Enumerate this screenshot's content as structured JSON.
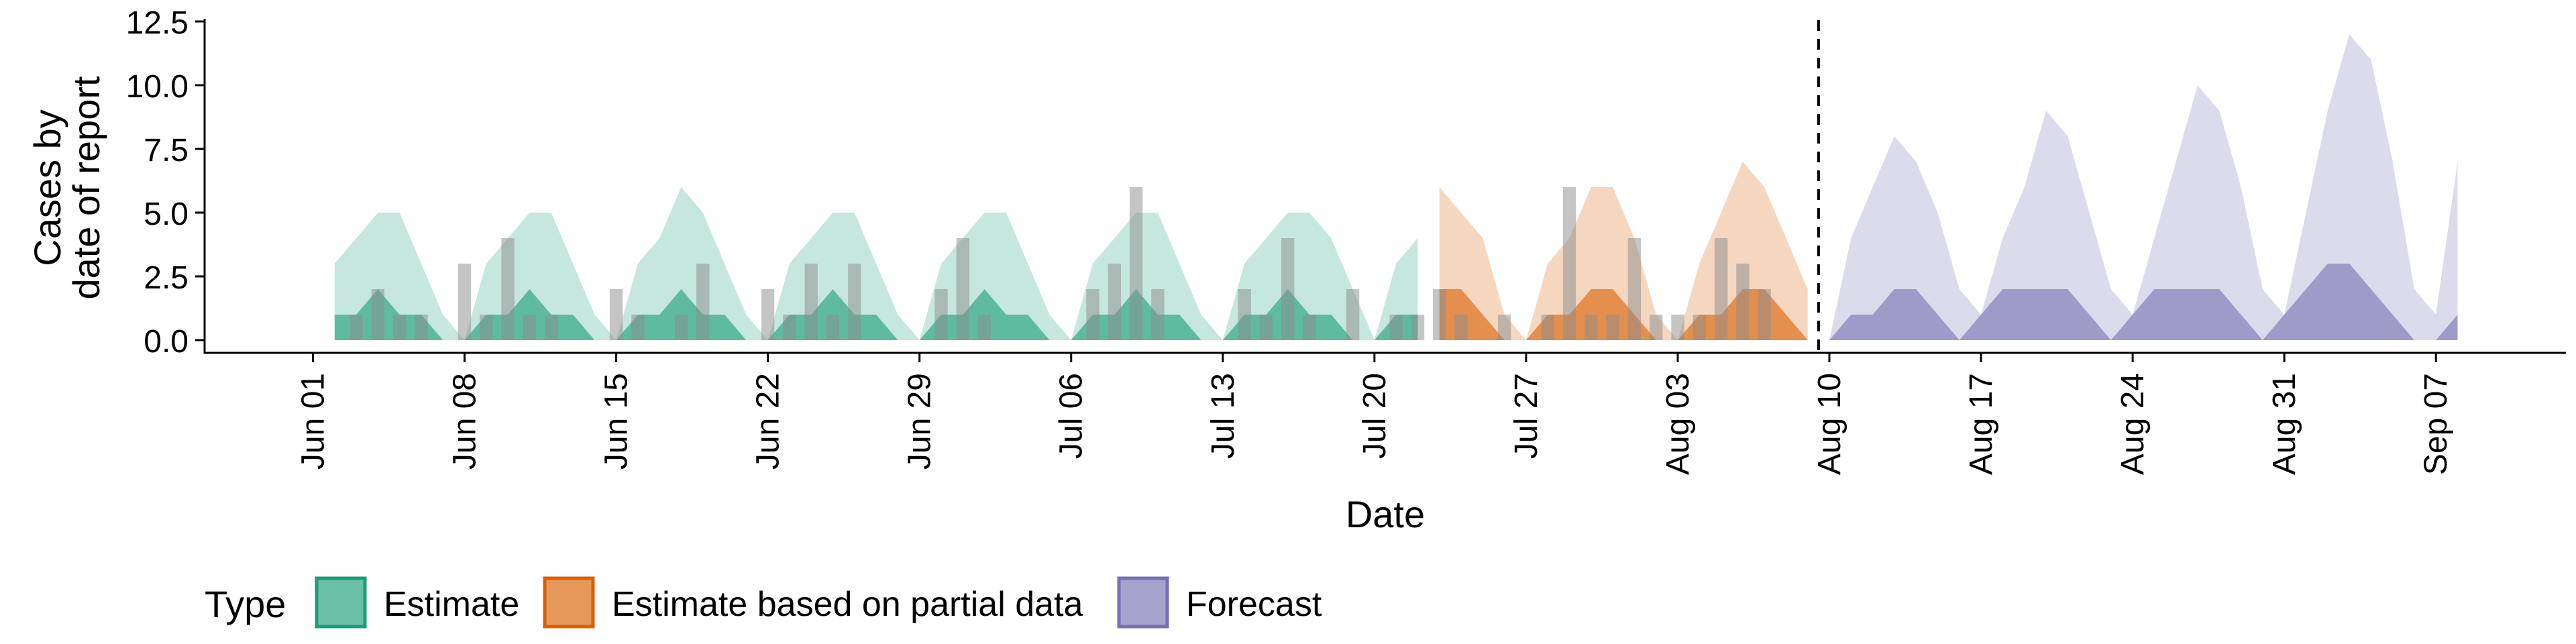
{
  "chart_data": {
    "type": "area",
    "xlabel": "Date",
    "ylabel_lines": [
      "Cases by",
      "date of report"
    ],
    "ylim": [
      -0.5,
      12.5
    ],
    "y_ticks": [
      0.0,
      2.5,
      5.0,
      7.5,
      10.0,
      12.5
    ],
    "y_tick_labels": [
      "0.0",
      "2.5",
      "5.0",
      "7.5",
      "10.0",
      "12.5"
    ],
    "x_ticks": [
      "2020-06-01",
      "2020-06-08",
      "2020-06-15",
      "2020-06-22",
      "2020-06-29",
      "2020-07-06",
      "2020-07-13",
      "2020-07-20",
      "2020-07-27",
      "2020-08-03",
      "2020-08-10",
      "2020-08-17",
      "2020-08-24",
      "2020-08-31",
      "2020-09-07"
    ],
    "x_tick_labels": [
      "Jun 01",
      "Jun 08",
      "Jun 15",
      "Jun 22",
      "Jun 29",
      "Jul 06",
      "Jul 13",
      "Jul 20",
      "Jul 27",
      "Aug 03",
      "Aug 10",
      "Aug 17",
      "Aug 24",
      "Aug 31",
      "Sep 07"
    ],
    "x_range": [
      "2020-05-27",
      "2020-09-13"
    ],
    "forecast_cutoff": "2020-08-09",
    "grid": false,
    "legend_position": "bottom",
    "legend_title": "Type",
    "legend_entries": [
      {
        "label": "Estimate",
        "color": "#1b9e77"
      },
      {
        "label": "Estimate based on partial data",
        "color": "#d95f02"
      },
      {
        "label": "Forecast",
        "color": "#7570b3"
      }
    ],
    "series": [
      {
        "name": "Estimate",
        "color": "#1b9e77",
        "x": [
          "2020-06-02",
          "2020-06-03",
          "2020-06-04",
          "2020-06-05",
          "2020-06-06",
          "2020-06-07",
          "2020-06-08",
          "2020-06-09",
          "2020-06-10",
          "2020-06-11",
          "2020-06-12",
          "2020-06-13",
          "2020-06-14",
          "2020-06-15",
          "2020-06-16",
          "2020-06-17",
          "2020-06-18",
          "2020-06-19",
          "2020-06-20",
          "2020-06-21",
          "2020-06-22",
          "2020-06-23",
          "2020-06-24",
          "2020-06-25",
          "2020-06-26",
          "2020-06-27",
          "2020-06-28",
          "2020-06-29",
          "2020-06-30",
          "2020-07-01",
          "2020-07-02",
          "2020-07-03",
          "2020-07-04",
          "2020-07-05",
          "2020-07-06",
          "2020-07-07",
          "2020-07-08",
          "2020-07-09",
          "2020-07-10",
          "2020-07-11",
          "2020-07-12",
          "2020-07-13",
          "2020-07-14",
          "2020-07-15",
          "2020-07-16",
          "2020-07-17",
          "2020-07-18",
          "2020-07-19",
          "2020-07-20",
          "2020-07-21",
          "2020-07-22"
        ],
        "outer_upper": [
          3,
          4,
          5,
          5,
          3,
          1,
          0,
          3,
          4,
          5,
          5,
          3,
          1,
          0,
          3,
          4,
          6,
          5,
          3,
          1,
          0,
          3,
          4,
          5,
          5,
          3,
          1,
          0,
          3,
          4,
          5,
          5,
          3,
          1,
          0,
          3,
          4,
          5,
          5,
          3,
          1,
          0,
          3,
          4,
          5,
          5,
          4,
          2,
          0,
          3,
          4
        ],
        "inner_lower": [
          0,
          0,
          0,
          0,
          0,
          0,
          0,
          0,
          0,
          0,
          0,
          0,
          0,
          0,
          0,
          0,
          0,
          0,
          0,
          0,
          0,
          0,
          0,
          0,
          0,
          0,
          0,
          0,
          0,
          0,
          0,
          0,
          0,
          0,
          0,
          0,
          0,
          0,
          0,
          0,
          0,
          0,
          0,
          0,
          0,
          0,
          0,
          0,
          0,
          0,
          0
        ],
        "inner_upper": [
          1,
          1,
          2,
          1,
          1,
          0,
          0,
          1,
          1,
          2,
          1,
          1,
          0,
          0,
          1,
          1,
          2,
          1,
          1,
          0,
          0,
          1,
          1,
          2,
          1,
          1,
          0,
          0,
          1,
          1,
          2,
          1,
          1,
          0,
          0,
          1,
          1,
          2,
          1,
          1,
          0,
          0,
          1,
          1,
          2,
          1,
          1,
          0,
          0,
          1,
          1
        ]
      },
      {
        "name": "Estimate based on partial data",
        "color": "#d95f02",
        "x": [
          "2020-07-23",
          "2020-07-24",
          "2020-07-25",
          "2020-07-26",
          "2020-07-27",
          "2020-07-28",
          "2020-07-29",
          "2020-07-30",
          "2020-07-31",
          "2020-08-01",
          "2020-08-02",
          "2020-08-03",
          "2020-08-04",
          "2020-08-05",
          "2020-08-06",
          "2020-08-07",
          "2020-08-08",
          "2020-08-09"
        ],
        "outer_upper": [
          6,
          5,
          4,
          1,
          0,
          3,
          4,
          6,
          6,
          4,
          1,
          0,
          3,
          5,
          7,
          6,
          4,
          2
        ],
        "inner_lower": [
          0,
          0,
          0,
          0,
          0,
          0,
          0,
          0,
          0,
          0,
          0,
          0,
          0,
          0,
          0,
          0,
          0,
          0
        ],
        "inner_upper": [
          2,
          2,
          1,
          0,
          0,
          1,
          1,
          2,
          2,
          1,
          0,
          0,
          1,
          1,
          2,
          2,
          1,
          0
        ]
      },
      {
        "name": "Forecast",
        "color": "#7570b3",
        "x": [
          "2020-08-10",
          "2020-08-11",
          "2020-08-12",
          "2020-08-13",
          "2020-08-14",
          "2020-08-15",
          "2020-08-16",
          "2020-08-17",
          "2020-08-18",
          "2020-08-19",
          "2020-08-20",
          "2020-08-21",
          "2020-08-22",
          "2020-08-23",
          "2020-08-24",
          "2020-08-25",
          "2020-08-26",
          "2020-08-27",
          "2020-08-28",
          "2020-08-29",
          "2020-08-30",
          "2020-08-31",
          "2020-09-01",
          "2020-09-02",
          "2020-09-03",
          "2020-09-04",
          "2020-09-05",
          "2020-09-06",
          "2020-09-07",
          "2020-09-08"
        ],
        "outer_upper": [
          0,
          4,
          6,
          8,
          7,
          5,
          2,
          1,
          4,
          6,
          9,
          8,
          5,
          2,
          1,
          4,
          7,
          10,
          9,
          6,
          2,
          1,
          5,
          9,
          12,
          11,
          7,
          2,
          1,
          7
        ],
        "inner_lower": [
          0,
          0,
          0,
          0,
          0,
          0,
          0,
          0,
          0,
          0,
          0,
          0,
          0,
          0,
          0,
          0,
          0,
          0,
          0,
          0,
          0,
          0,
          0,
          0,
          0,
          0,
          0,
          0,
          0,
          0
        ],
        "inner_upper": [
          0,
          1,
          1,
          2,
          2,
          1,
          0,
          1,
          2,
          2,
          2,
          2,
          1,
          0,
          1,
          2,
          2,
          2,
          2,
          1,
          0,
          1,
          2,
          3,
          3,
          2,
          1,
          0,
          0,
          1
        ]
      }
    ],
    "reported_cases": {
      "color": "#8c8c8c",
      "points": [
        [
          "2020-06-03",
          1
        ],
        [
          "2020-06-04",
          2
        ],
        [
          "2020-06-05",
          1
        ],
        [
          "2020-06-06",
          1
        ],
        [
          "2020-06-08",
          3
        ],
        [
          "2020-06-09",
          1
        ],
        [
          "2020-06-10",
          4
        ],
        [
          "2020-06-11",
          1
        ],
        [
          "2020-06-12",
          1
        ],
        [
          "2020-06-15",
          2
        ],
        [
          "2020-06-16",
          1
        ],
        [
          "2020-06-18",
          1
        ],
        [
          "2020-06-19",
          3
        ],
        [
          "2020-06-22",
          2
        ],
        [
          "2020-06-23",
          1
        ],
        [
          "2020-06-24",
          3
        ],
        [
          "2020-06-25",
          1
        ],
        [
          "2020-06-26",
          3
        ],
        [
          "2020-06-30",
          2
        ],
        [
          "2020-07-01",
          4
        ],
        [
          "2020-07-02",
          1
        ],
        [
          "2020-07-07",
          2
        ],
        [
          "2020-07-08",
          3
        ],
        [
          "2020-07-09",
          6
        ],
        [
          "2020-07-10",
          2
        ],
        [
          "2020-07-14",
          2
        ],
        [
          "2020-07-15",
          1
        ],
        [
          "2020-07-16",
          4
        ],
        [
          "2020-07-17",
          1
        ],
        [
          "2020-07-19",
          2
        ],
        [
          "2020-07-21",
          1
        ],
        [
          "2020-07-22",
          1
        ],
        [
          "2020-07-23",
          2
        ],
        [
          "2020-07-24",
          1
        ],
        [
          "2020-07-26",
          1
        ],
        [
          "2020-07-28",
          1
        ],
        [
          "2020-07-29",
          6
        ],
        [
          "2020-07-30",
          1
        ],
        [
          "2020-07-31",
          1
        ],
        [
          "2020-08-01",
          4
        ],
        [
          "2020-08-02",
          1
        ],
        [
          "2020-08-03",
          1
        ],
        [
          "2020-08-04",
          1
        ],
        [
          "2020-08-05",
          4
        ],
        [
          "2020-08-06",
          3
        ],
        [
          "2020-08-07",
          2
        ]
      ]
    }
  }
}
